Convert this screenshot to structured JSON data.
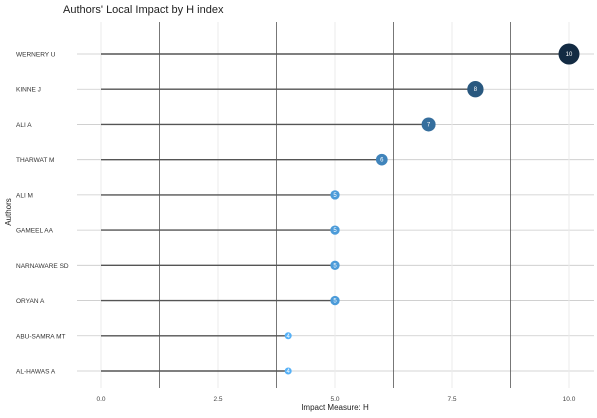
{
  "chart_data": {
    "type": "scatter",
    "subtype": "lollipop",
    "title": "Authors' Local Impact by H index",
    "xlabel": "Impact Measure: H",
    "ylabel": "Authors",
    "xlim": [
      0,
      10
    ],
    "xticks": [
      "0.0",
      "2.5",
      "5.0",
      "7.5",
      "10.0"
    ],
    "grid": true,
    "categories": [
      "WERNERY U",
      "KINNE J",
      "ALI A",
      "THARWAT M",
      "ALI M",
      "GAMEEL AA",
      "NARNAWARE SD",
      "ORYAN A",
      "ABU-SAMRA MT",
      "AL-HAWAS A"
    ],
    "values": [
      10,
      8,
      7,
      6,
      5,
      5,
      5,
      5,
      4,
      4
    ],
    "point_labels": [
      "10",
      "8",
      "7",
      "6",
      "5",
      "5",
      "5",
      "5",
      "4",
      "4"
    ],
    "colors": {
      "low": "#56b1f7",
      "high": "#132b43"
    }
  }
}
